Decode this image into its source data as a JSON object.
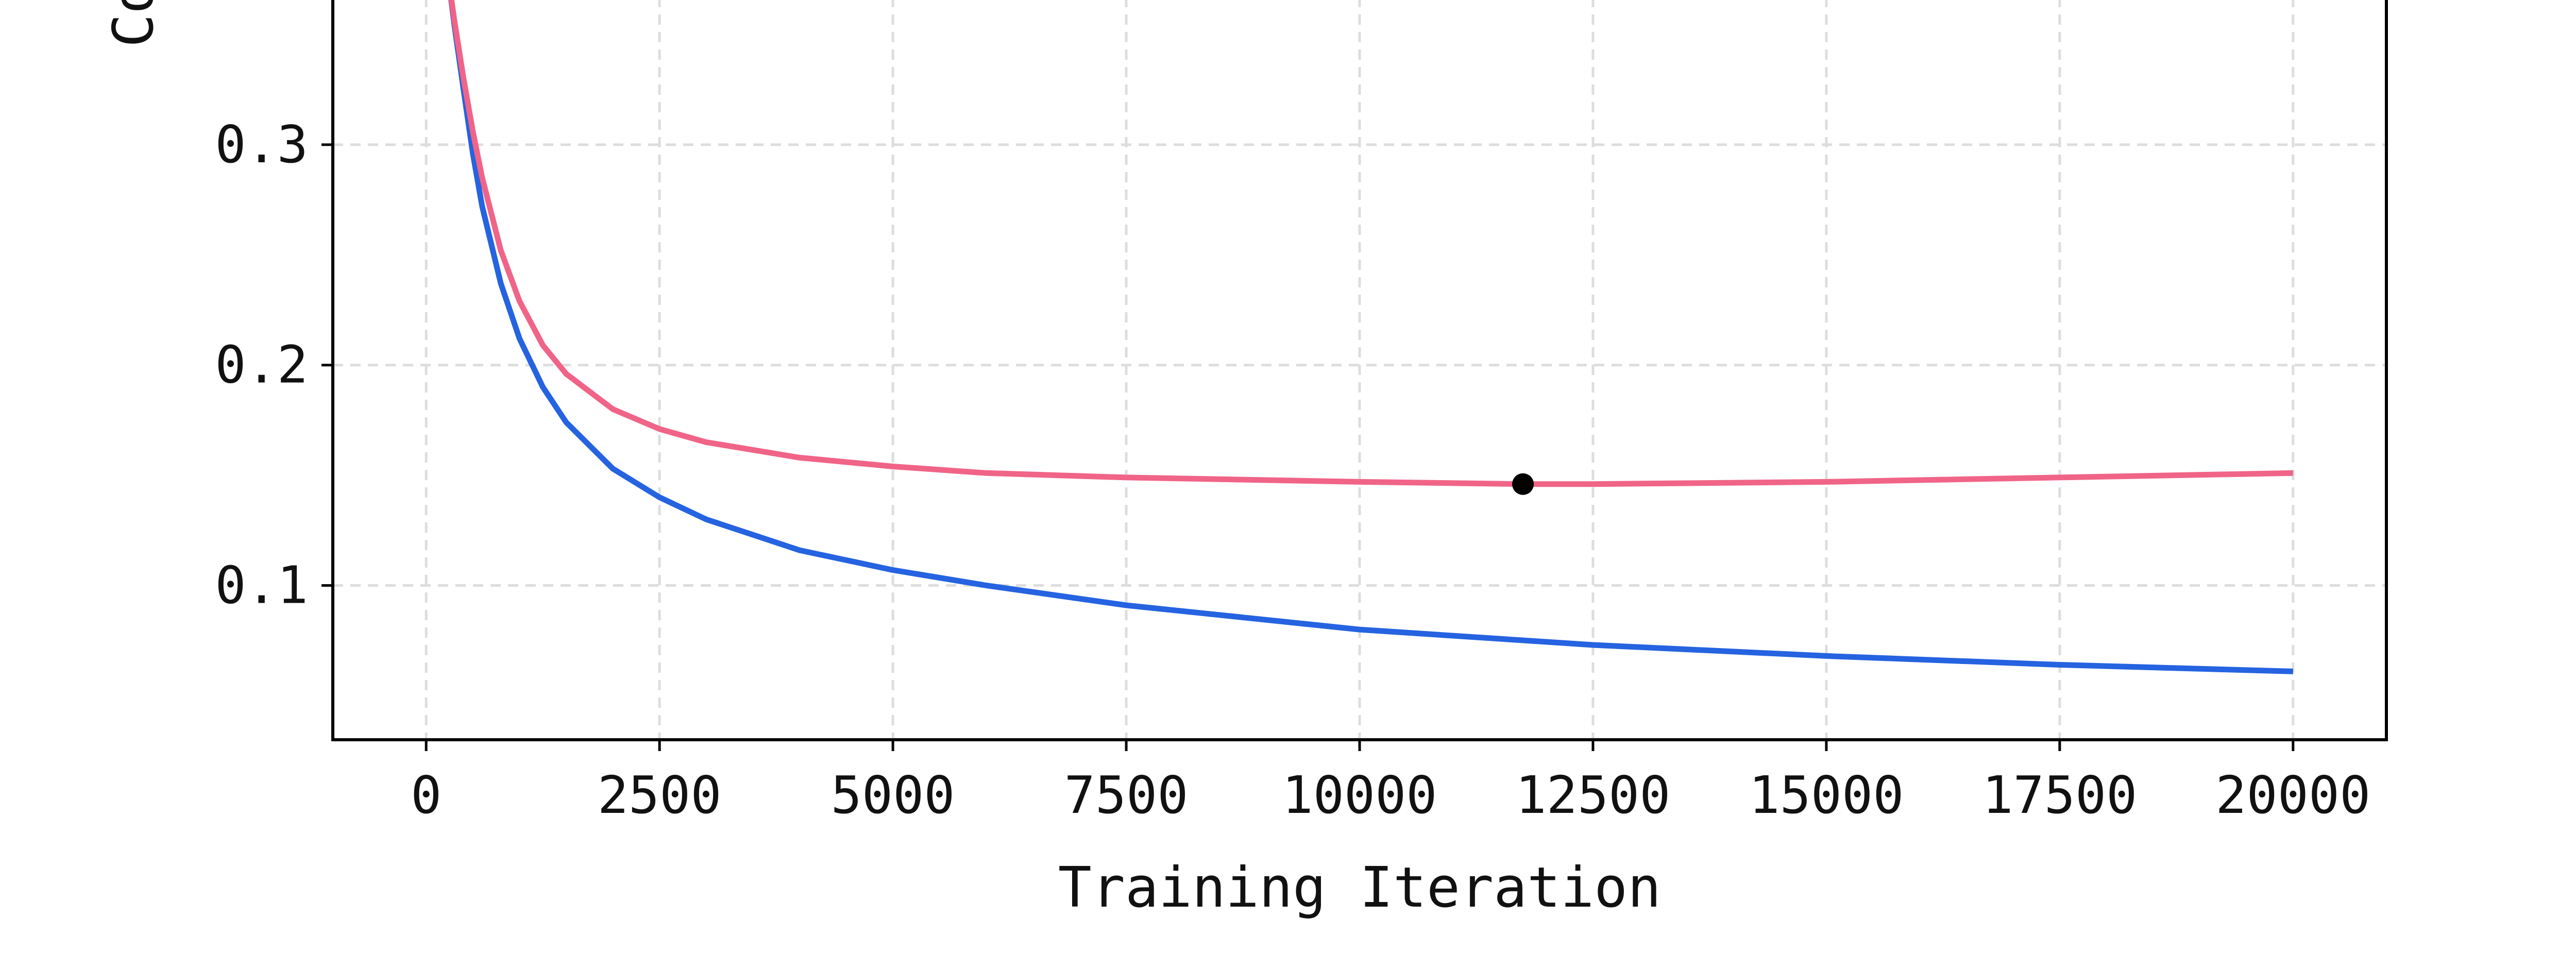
{
  "chart_data": {
    "type": "line",
    "title": "",
    "xlabel": "Training Iteration",
    "ylabel": "Co",
    "xlim": [
      -1000,
      21000
    ],
    "ylim": [
      0.03,
      0.375
    ],
    "xticks": [
      0,
      2500,
      5000,
      7500,
      10000,
      12500,
      15000,
      17500,
      20000
    ],
    "xtick_labels": [
      "0",
      "2500",
      "5000",
      "7500",
      "10000",
      "12500",
      "15000",
      "17500",
      "20000"
    ],
    "yticks": [
      0.1,
      0.2,
      0.3
    ],
    "ytick_labels": [
      "0.1",
      "0.2",
      "0.3"
    ],
    "grid": true,
    "series": [
      {
        "color": "#2563e0",
        "x": [
          240,
          300,
          400,
          500,
          600,
          800,
          1000,
          1250,
          1500,
          2000,
          2500,
          3000,
          4000,
          5000,
          6000,
          7500,
          10000,
          12500,
          15000,
          17500,
          20000
        ],
        "y": [
          0.375,
          0.355,
          0.325,
          0.296,
          0.272,
          0.237,
          0.212,
          0.19,
          0.174,
          0.153,
          0.14,
          0.13,
          0.116,
          0.107,
          0.1,
          0.091,
          0.08,
          0.073,
          0.068,
          0.064,
          0.061
        ]
      },
      {
        "color": "#f06488",
        "x": [
          240,
          300,
          400,
          500,
          600,
          800,
          1000,
          1250,
          1500,
          2000,
          2500,
          3000,
          4000,
          5000,
          6000,
          7500,
          10000,
          11750,
          12500,
          15000,
          17500,
          20000
        ],
        "y": [
          0.375,
          0.357,
          0.33,
          0.306,
          0.285,
          0.252,
          0.229,
          0.209,
          0.196,
          0.18,
          0.171,
          0.165,
          0.158,
          0.154,
          0.151,
          0.149,
          0.147,
          0.146,
          0.146,
          0.147,
          0.149,
          0.151
        ]
      }
    ],
    "markers": [
      {
        "x": 11750,
        "y": 0.146,
        "color": "#000000"
      }
    ]
  }
}
